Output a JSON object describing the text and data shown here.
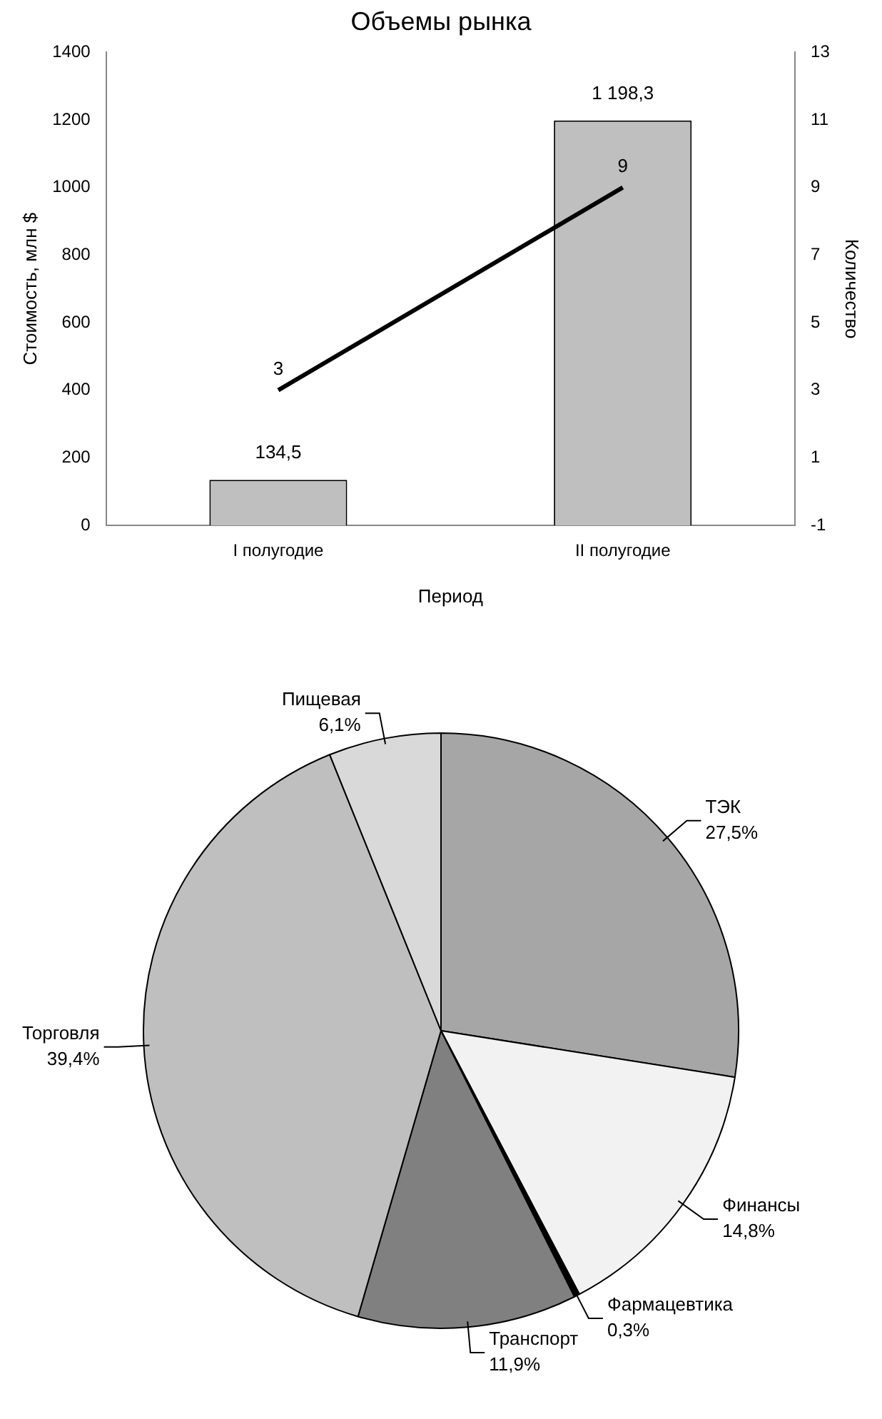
{
  "chart_data": [
    {
      "type": "bar",
      "title": "Объемы рынка",
      "xlabel": "Период",
      "ylabel": "Стоимость, млн $",
      "y2label": "Количество",
      "categories": [
        "I полугодие",
        "II полугодие"
      ],
      "series": [
        {
          "type": "bar",
          "color": "#bfbfbf",
          "values": [
            134.5,
            1198.3
          ],
          "value_labels": [
            "134,5",
            "1 198,3"
          ]
        },
        {
          "type": "line",
          "axis": "y2",
          "color": "#000000",
          "values": [
            3,
            9
          ],
          "value_labels": [
            "3",
            "9"
          ],
          "marker": "none"
        }
      ],
      "ylim": [
        0,
        1400
      ],
      "yticks": [
        0,
        200,
        400,
        600,
        800,
        1000,
        1200,
        1400
      ],
      "y2lim": [
        -1,
        13
      ],
      "y2ticks": [
        -1,
        1,
        3,
        5,
        7,
        9,
        11,
        13
      ]
    },
    {
      "type": "pie",
      "categories": [
        "ТЭК",
        "Финансы",
        "Фармацевтика",
        "Транспорт",
        "Торговля",
        "Пищевая"
      ],
      "values": [
        27.5,
        14.8,
        0.3,
        11.9,
        39.4,
        6.1
      ],
      "colors": [
        "#a6a6a6",
        "#f2f2f2",
        "#000000",
        "#808080",
        "#bfbfbf",
        "#d9d9d9"
      ],
      "value_labels": [
        "27,5%",
        "14,8%",
        "0,3%",
        "11,9%",
        "39,4%",
        "6,1%"
      ]
    }
  ]
}
